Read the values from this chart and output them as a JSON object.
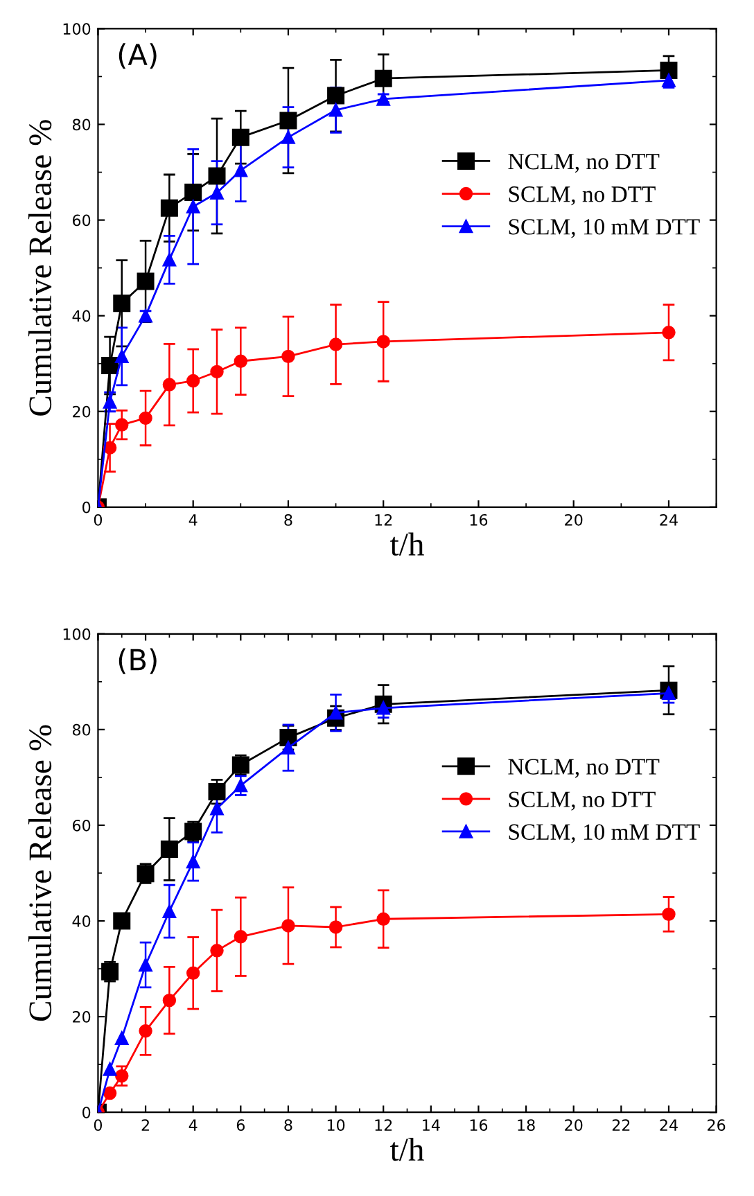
{
  "chart_data": [
    {
      "type": "line",
      "xlabel": "t/h",
      "ylabel": "Cumulative Release %",
      "annotations": [
        "(A)"
      ],
      "xlim": [
        0,
        26
      ],
      "ylim": [
        0,
        100
      ],
      "xticks": [
        0,
        4,
        8,
        12,
        16,
        20,
        24
      ],
      "yticks": [
        0,
        20,
        40,
        60,
        80,
        100
      ],
      "legend": "right",
      "grid": false,
      "x": [
        0,
        0.5,
        1,
        2,
        3,
        4,
        5,
        6,
        8,
        10,
        12,
        24
      ],
      "series": [
        {
          "name": "NCLM, no DTT",
          "color": "#000000",
          "marker": "square",
          "values": [
            0,
            29.6,
            42.6,
            47.2,
            62.5,
            65.8,
            69.2,
            77.3,
            80.8,
            86,
            89.6,
            91.3
          ],
          "errors": [
            null,
            6,
            9,
            8.5,
            7,
            8,
            12,
            5.5,
            11,
            7.5,
            5,
            3
          ]
        },
        {
          "name": "SCLM, no DTT",
          "color": "#ff0000",
          "marker": "circle",
          "values": [
            0,
            12.4,
            17.2,
            18.6,
            25.6,
            26.4,
            28.3,
            30.5,
            31.5,
            34,
            34.6,
            36.5
          ],
          "errors": [
            null,
            5,
            3,
            5.7,
            8.5,
            6.6,
            8.8,
            7,
            8.3,
            8.3,
            8.3,
            5.8
          ]
        },
        {
          "name": "SCLM, 10 mM DTT",
          "color": "#0000ff",
          "marker": "triangle",
          "values": [
            0,
            22,
            31.5,
            40,
            51.7,
            62.8,
            65.7,
            70.4,
            77.3,
            83,
            85.3,
            89.2
          ],
          "errors": [
            null,
            2,
            6,
            1,
            5,
            12,
            6.6,
            6.5,
            6.3,
            4.7,
            1,
            1.5
          ]
        }
      ]
    },
    {
      "type": "line",
      "xlabel": "t/h",
      "ylabel": "Cumulative Release %",
      "annotations": [
        "(B)"
      ],
      "xlim": [
        0,
        26
      ],
      "ylim": [
        0,
        100
      ],
      "xticks": [
        0,
        2,
        4,
        6,
        8,
        10,
        12,
        14,
        16,
        18,
        20,
        22,
        24,
        26
      ],
      "yticks": [
        0,
        20,
        40,
        60,
        80,
        100
      ],
      "legend": "right",
      "grid": false,
      "x": [
        0,
        0.5,
        1,
        2,
        3,
        4,
        5,
        6,
        8,
        10,
        12,
        24
      ],
      "series": [
        {
          "name": "NCLM, no DTT",
          "color": "#000000",
          "marker": "square",
          "values": [
            0,
            29.4,
            40,
            49.9,
            55,
            58.7,
            67,
            72.6,
            78.3,
            82.4,
            85.3,
            88.2
          ],
          "errors": [
            null,
            2,
            null,
            2,
            6.5,
            2,
            2.5,
            2,
            2.5,
            2.5,
            4,
            5
          ]
        },
        {
          "name": "SCLM, no DTT",
          "color": "#ff0000",
          "marker": "circle",
          "values": [
            0,
            4,
            7.6,
            17,
            23.4,
            29.1,
            33.8,
            36.7,
            39,
            38.7,
            40.4,
            41.4
          ],
          "errors": [
            null,
            null,
            2,
            5,
            7,
            7.5,
            8.5,
            8.2,
            8,
            4.2,
            6,
            3.6
          ]
        },
        {
          "name": "SCLM, 10 mM DTT",
          "color": "#0000ff",
          "marker": "triangle",
          "values": [
            0,
            9,
            15.5,
            30.8,
            42,
            52.4,
            63.5,
            68.3,
            76.2,
            83.5,
            84.5,
            87.6
          ],
          "errors": [
            null,
            null,
            null,
            4.7,
            5.5,
            4,
            5,
            2,
            4.8,
            3.8,
            2,
            2
          ]
        }
      ]
    }
  ]
}
